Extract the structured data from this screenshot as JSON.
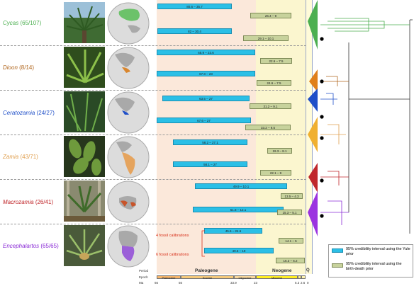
{
  "colors": {
    "cycas": "#4caf50",
    "dioon": "#b0651c",
    "ceratozamia": "#1f4fc8",
    "zamia": "#e0a050",
    "macrozamia": "#c0282c",
    "encephalartos": "#8a2bd6",
    "yule_bar": "#2bbfe6",
    "birth_death_bar": "#c7d29c",
    "fossil_text": "#d8311b"
  },
  "genera": [
    {
      "name": "Cycas",
      "count": "(65/107)",
      "icon": "cycad-photo"
    },
    {
      "name": "Dioon",
      "count": "(8/14)",
      "icon": "cycad-photo"
    },
    {
      "name": "Ceratozamia",
      "count": "(24/27)",
      "icon": "cycad-photo"
    },
    {
      "name": "Zamia",
      "count": "(43/71)",
      "icon": "cycad-photo"
    },
    {
      "name": "Macrozamia",
      "count": "(26/41)",
      "icon": "cycad-photo"
    },
    {
      "name": "Encephalartos",
      "count": "(65/65)",
      "icon": "cycad-photo"
    }
  ],
  "intervals": {
    "cycas": [
      "80.6 – 35.7",
      "26.4 – 9",
      "82 – 30.4",
      "29.1 – 10.1"
    ],
    "dioon": [
      "65.9 – 23.6",
      "22.6 – 7.5",
      "67.8 – 23",
      "24.6 – 7.5"
    ],
    "ceratozamia": [
      "63.5 – 27",
      "31.2 – 9.1",
      "67.6 – 27",
      "33.2 – 9.5"
    ],
    "zamia": [
      "58.2 – 27.1",
      "19.3 – 8.1",
      "58.1 – 27",
      "22.1 – 9"
    ],
    "macrozamia": [
      "49.9 – 10.1",
      "13.5 – 4.3",
      "51.8 – 12.1",
      "15.3 – 5.1"
    ],
    "encephalartos": [
      "45.6 – 24.6",
      "14.1 – 5",
      "49.5 – 19",
      "16.3 – 6.2"
    ]
  },
  "fossil_labels": [
    "4 fossil calibrations",
    "6 fossil calibrations"
  ],
  "timescale": {
    "row_labels": [
      "Period",
      "Epoch",
      "Ma"
    ],
    "periods": [
      "Paleogene",
      "Neogene",
      "Q"
    ],
    "epochs": [
      "Paleocene",
      "Eocene",
      "Oligocene",
      "Miocene"
    ],
    "ticks": [
      "66",
      "56",
      "33.9",
      "23",
      "5.3",
      "2.6",
      "0"
    ]
  },
  "legend": {
    "yule": "95% credibility interval using the Yule prior",
    "birth_death": "95% credibility interval using the birth-death prior"
  }
}
